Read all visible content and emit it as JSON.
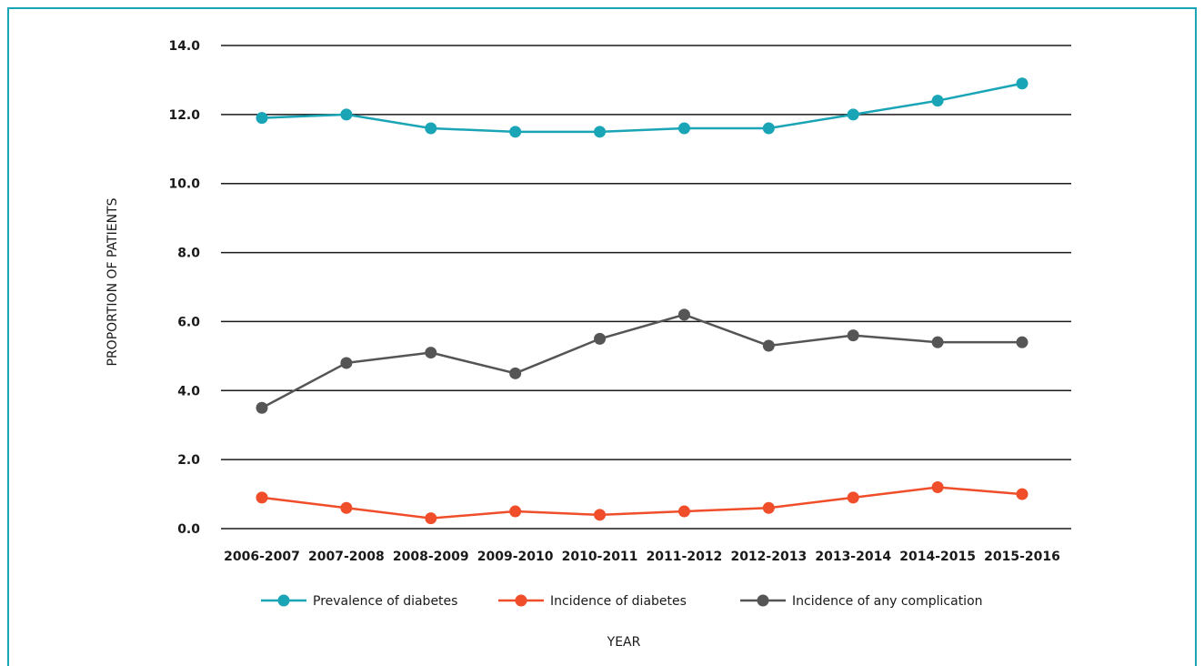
{
  "chart_data": {
    "type": "line",
    "title": "",
    "xlabel": "YEAR",
    "ylabel": "PROPORTION OF PATIENTS",
    "ylim": [
      0,
      14
    ],
    "yticks": [
      "0.0",
      "2.0",
      "4.0",
      "6.0",
      "8.0",
      "10.0",
      "12.0",
      "14.0"
    ],
    "grid": "horizontal",
    "legend_position": "bottom",
    "categories": [
      "2006-2007",
      "2007-2008",
      "2008-2009",
      "2009-2010",
      "2010-2011",
      "2011-2012",
      "2012-2013",
      "2013-2014",
      "2014-2015",
      "2015-2016"
    ],
    "series": [
      {
        "name": "Prevalence of diabetes",
        "color": "#1aa5b6",
        "values": [
          11.9,
          12.0,
          11.6,
          11.5,
          11.5,
          11.6,
          11.6,
          12.0,
          12.4,
          12.9
        ]
      },
      {
        "name": "Incidence of diabetes",
        "color": "#f04e2a",
        "values": [
          0.9,
          0.6,
          0.3,
          0.5,
          0.4,
          0.5,
          0.6,
          0.9,
          1.2,
          1.0
        ]
      },
      {
        "name": "Incidence of any complication",
        "color": "#555555",
        "values": [
          3.5,
          4.8,
          5.1,
          4.5,
          5.5,
          6.2,
          5.3,
          5.6,
          5.4,
          5.4
        ]
      }
    ]
  }
}
